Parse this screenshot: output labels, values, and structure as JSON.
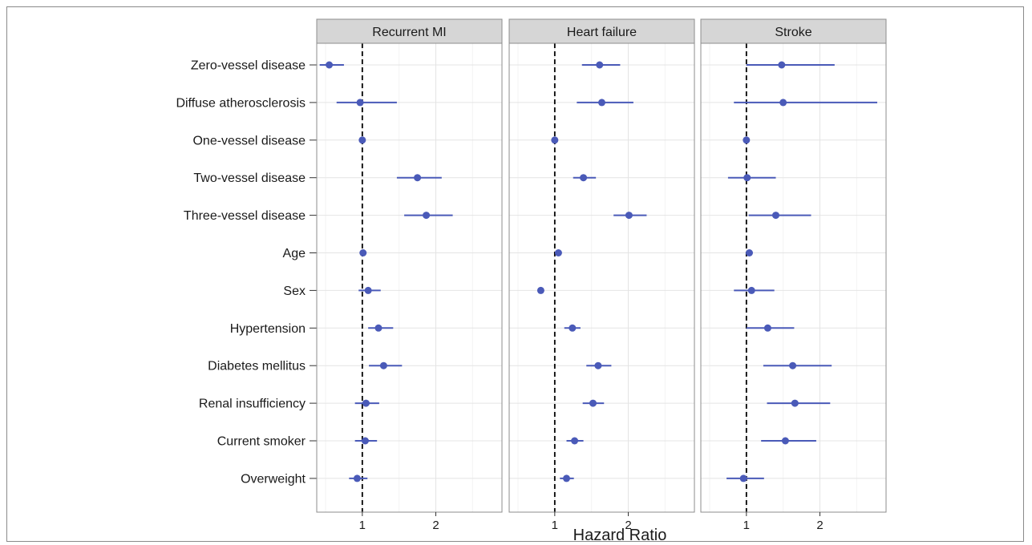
{
  "chart_data": {
    "type": "scatter",
    "subtype": "forest-plot-faceted",
    "xlabel": "Hazard Ratio",
    "ylabel": "",
    "x_ticks": [
      1,
      2
    ],
    "reference_line": 1,
    "point_color": "#4a5ab8",
    "grid": true,
    "categories": [
      "Zero-vessel disease",
      "Diffuse atherosclerosis",
      "One-vessel disease",
      "Two-vessel disease",
      "Three-vessel disease",
      "Age",
      "Sex",
      "Hypertension",
      "Diabetes mellitus",
      "Renal insufficiency",
      "Current smoker",
      "Overweight"
    ],
    "panels": [
      {
        "title": "Recurrent MI",
        "points": [
          {
            "hr": 0.55,
            "lo": 0.42,
            "hi": 0.75
          },
          {
            "hr": 0.97,
            "lo": 0.65,
            "hi": 1.47
          },
          {
            "hr": 1.0,
            "lo": 1.0,
            "hi": 1.0
          },
          {
            "hr": 1.75,
            "lo": 1.47,
            "hi": 2.08
          },
          {
            "hr": 1.87,
            "lo": 1.57,
            "hi": 2.23
          },
          {
            "hr": 1.01,
            "lo": 1.0,
            "hi": 1.02
          },
          {
            "hr": 1.08,
            "lo": 0.95,
            "hi": 1.25
          },
          {
            "hr": 1.22,
            "lo": 1.08,
            "hi": 1.42
          },
          {
            "hr": 1.29,
            "lo": 1.09,
            "hi": 1.54
          },
          {
            "hr": 1.05,
            "lo": 0.9,
            "hi": 1.23
          },
          {
            "hr": 1.04,
            "lo": 0.9,
            "hi": 1.2
          },
          {
            "hr": 0.93,
            "lo": 0.82,
            "hi": 1.07
          }
        ]
      },
      {
        "title": "Heart failure",
        "points": [
          {
            "hr": 1.61,
            "lo": 1.37,
            "hi": 1.89
          },
          {
            "hr": 1.64,
            "lo": 1.3,
            "hi": 2.07
          },
          {
            "hr": 1.0,
            "lo": 1.0,
            "hi": 1.0
          },
          {
            "hr": 1.39,
            "lo": 1.25,
            "hi": 1.56
          },
          {
            "hr": 2.01,
            "lo": 1.8,
            "hi": 2.25
          },
          {
            "hr": 1.05,
            "lo": 1.04,
            "hi": 1.06
          },
          {
            "hr": 0.81,
            "lo": 0.78,
            "hi": 0.85
          },
          {
            "hr": 1.24,
            "lo": 1.13,
            "hi": 1.35
          },
          {
            "hr": 1.59,
            "lo": 1.43,
            "hi": 1.77
          },
          {
            "hr": 1.52,
            "lo": 1.38,
            "hi": 1.67
          },
          {
            "hr": 1.27,
            "lo": 1.16,
            "hi": 1.39
          },
          {
            "hr": 1.16,
            "lo": 1.07,
            "hi": 1.26
          }
        ]
      },
      {
        "title": "Stroke",
        "points": [
          {
            "hr": 1.48,
            "lo": 1.0,
            "hi": 2.2
          },
          {
            "hr": 1.5,
            "lo": 0.83,
            "hi": 2.78
          },
          {
            "hr": 1.0,
            "lo": 1.0,
            "hi": 1.0
          },
          {
            "hr": 1.01,
            "lo": 0.75,
            "hi": 1.4
          },
          {
            "hr": 1.4,
            "lo": 1.03,
            "hi": 1.88
          },
          {
            "hr": 1.04,
            "lo": 1.03,
            "hi": 1.05
          },
          {
            "hr": 1.07,
            "lo": 0.83,
            "hi": 1.38
          },
          {
            "hr": 1.29,
            "lo": 1.0,
            "hi": 1.65
          },
          {
            "hr": 1.63,
            "lo": 1.23,
            "hi": 2.16
          },
          {
            "hr": 1.66,
            "lo": 1.28,
            "hi": 2.14
          },
          {
            "hr": 1.53,
            "lo": 1.2,
            "hi": 1.95
          },
          {
            "hr": 0.96,
            "lo": 0.73,
            "hi": 1.24
          }
        ]
      }
    ]
  }
}
